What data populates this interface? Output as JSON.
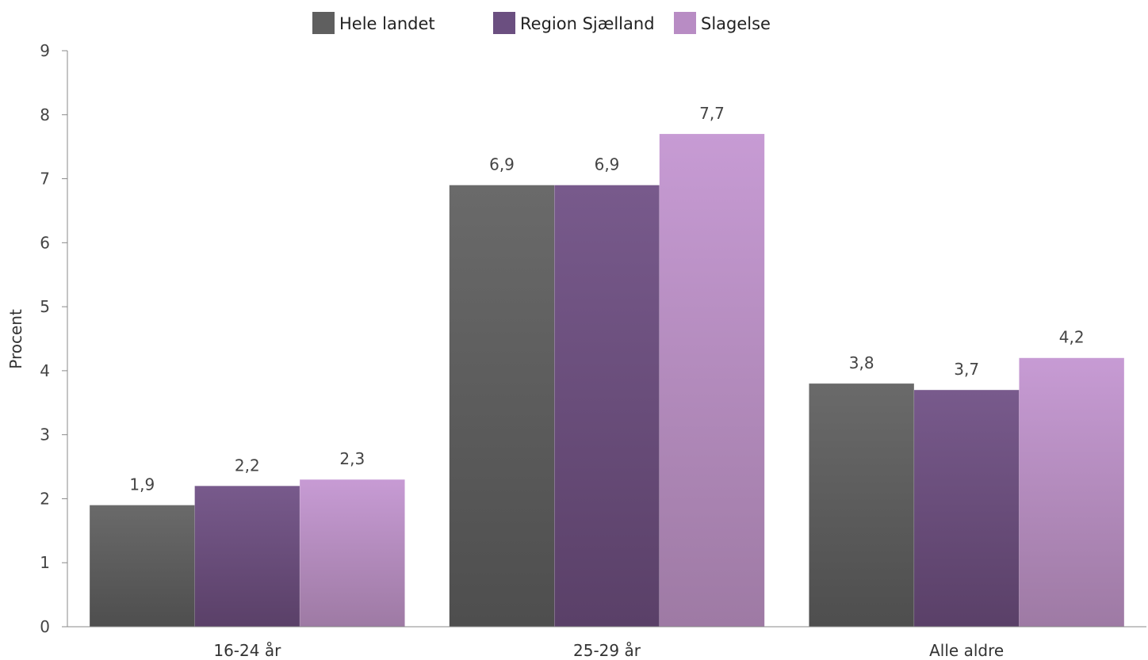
{
  "chart_data": {
    "type": "bar",
    "title": "",
    "xlabel": "",
    "ylabel": "Procent",
    "ylim": [
      0,
      9
    ],
    "yticks": [
      "0",
      "1",
      "2",
      "3",
      "4",
      "5",
      "6",
      "7",
      "8",
      "9"
    ],
    "grid": false,
    "legend_position": "top-center",
    "categories": [
      "16-24 år",
      "25-29 år",
      "Alle aldre"
    ],
    "series": [
      {
        "name": "Hele landet",
        "values": [
          1.9,
          6.9,
          3.8
        ],
        "labels": [
          "1,9",
          "6,9",
          "3,8"
        ],
        "color": "#5f5f5f",
        "color_top": "#6a6a6a",
        "color_bottom": "#4e4e4e"
      },
      {
        "name": "Region Sjælland",
        "values": [
          2.2,
          6.9,
          3.7
        ],
        "labels": [
          "2,2",
          "6,9",
          "3,7"
        ],
        "color": "#6b4f80",
        "color_top": "#785a8c",
        "color_bottom": "#5a4068"
      },
      {
        "name": "Slagelse",
        "values": [
          2.3,
          7.7,
          4.2
        ],
        "labels": [
          "2,3",
          "7,7",
          "4,2"
        ],
        "color": "#b88cc4",
        "color_top": "#c79bd4",
        "color_bottom": "#9e7aa4"
      }
    ]
  }
}
